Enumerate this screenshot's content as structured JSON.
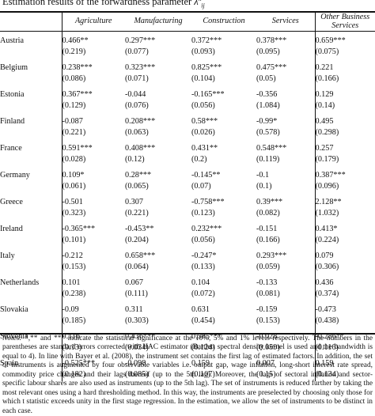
{
  "caption": {
    "text": "Estimation results of the forwardness parameter ",
    "symbol": "λ",
    "sup": "k",
    "sub": "ij"
  },
  "table": {
    "columns": [
      "",
      "Agriculture",
      "Manufacturing",
      "Construction",
      "Services",
      "Other Business Services"
    ],
    "rows": [
      {
        "country": "Austria",
        "coef": [
          "0.466**",
          "0.297***",
          "0.372***",
          "0.378***",
          "0.659***"
        ],
        "se": [
          "(0.219)",
          "(0.077)",
          "(0.093)",
          "(0.095)",
          "(0.075)"
        ]
      },
      {
        "country": "Belgium",
        "coef": [
          "0.238***",
          "0.323***",
          "0.825***",
          "0.475***",
          "0.221"
        ],
        "se": [
          "(0.086)",
          "(0.071)",
          "(0.104)",
          "(0.05)",
          "(0.166)"
        ]
      },
      {
        "country": "Estonia",
        "coef": [
          "0.367***",
          "-0.044",
          "-0.165***",
          "-0.356",
          "0.129"
        ],
        "se": [
          "(0.129)",
          "(0.076)",
          "(0.056)",
          "(1.084)",
          "(0.14)"
        ]
      },
      {
        "country": "Finland",
        "coef": [
          "-0.087",
          "0.208***",
          "0.58***",
          "-0.99*",
          "0.495"
        ],
        "se": [
          "(0.221)",
          "(0.063)",
          "(0.026)",
          "(0.578)",
          "(0.298)"
        ]
      },
      {
        "country": "France",
        "coef": [
          "0.591***",
          "0.408***",
          "0.431**",
          "0.548***",
          "0.257"
        ],
        "se": [
          "(0.028)",
          "(0.12)",
          "(0.2)",
          "(0.119)",
          "(0.179)"
        ]
      },
      {
        "country": "Germany",
        "coef": [
          "0.109*",
          "0.28***",
          "-0.145**",
          "-0.1",
          "0.387***"
        ],
        "se": [
          "(0.061)",
          "(0.065)",
          "(0.07)",
          "(0.1)",
          "(0.096)"
        ]
      },
      {
        "country": "Greece",
        "coef": [
          "-0.501",
          "0.307",
          "-0.758***",
          "0.39***",
          "2.128**"
        ],
        "se": [
          "(0.323)",
          "(0.221)",
          "(0.123)",
          "(0.082)",
          "(1.032)"
        ]
      },
      {
        "country": "Ireland",
        "coef": [
          "-0.365***",
          "-0.453**",
          "0.232***",
          "-0.151",
          "0.413*"
        ],
        "se": [
          "(0.101)",
          "(0.204)",
          "(0.056)",
          "(0.166)",
          "(0.224)"
        ]
      },
      {
        "country": "Italy",
        "coef": [
          "-0.212",
          "0.658***",
          "-0.247*",
          "0.293***",
          "0.079"
        ],
        "se": [
          "(0.153)",
          "(0.064)",
          "(0.133)",
          "(0.059)",
          "(0.306)"
        ]
      },
      {
        "country": "Netherlands",
        "coef": [
          "0.101",
          "0.067",
          "0.104",
          "-0.133",
          "0.436"
        ],
        "se": [
          "(0.238)",
          "(0.111)",
          "(0.072)",
          "(0.081)",
          "(0.374)"
        ]
      },
      {
        "country": "Slovakia",
        "coef": [
          "-0.09",
          "0.311",
          "0.631",
          "-0.159",
          "-0.473"
        ],
        "se": [
          "(0.185)",
          "(0.303)",
          "(0.454)",
          "(0.153)",
          "(0.438)"
        ]
      },
      {
        "country": "Slovenia",
        "coef": [
          "0.116",
          "0.436***",
          "0.585***",
          "-0.028",
          "-0.286**"
        ],
        "se": [
          "(0.13)",
          "(0.034)",
          "(0.124)",
          "(0.059)",
          "(0.116)"
        ]
      },
      {
        "country": "Spain",
        "coef": [
          "-0.525***",
          "-0.098",
          "0.159",
          "0.007",
          "0.159"
        ],
        "se": [
          "(0.182)",
          "(0.085)",
          "(0.107)",
          "(0.15)",
          "(0.134)"
        ]
      }
    ]
  },
  "notes": {
    "label": "Notes:",
    "text": " *,** and *** indicate the statistical significance at the 10%, 5% and 1% levels respectively. The numbers in the parentheses are standard errors corrected with HAC estimator (Bartlett spectral density kernel is used and the bandwidth is equal to 4). In line with Bayer et al. (2008), the instrument set contains the first lag of estimated factors. In addition, the set of instruments is augmented by four observable variables i.e. output gap, wage inflation, long-short interest rate spread, commodity price changes and their lags thereof (up to the 5th lag). Moreover, the lags of sectoral inflation and sector-specific labour shares are also used as instruments (up to the 5th lag). The set of instruments is reduced further by taking the most relevant ones using a hard thresholding method. In this way, the instruments are preselected by choosing only those for which t statistic exceeds unity in the first stage regression. In the estimation, we allow the set of instruments to be distinct in each case."
  }
}
